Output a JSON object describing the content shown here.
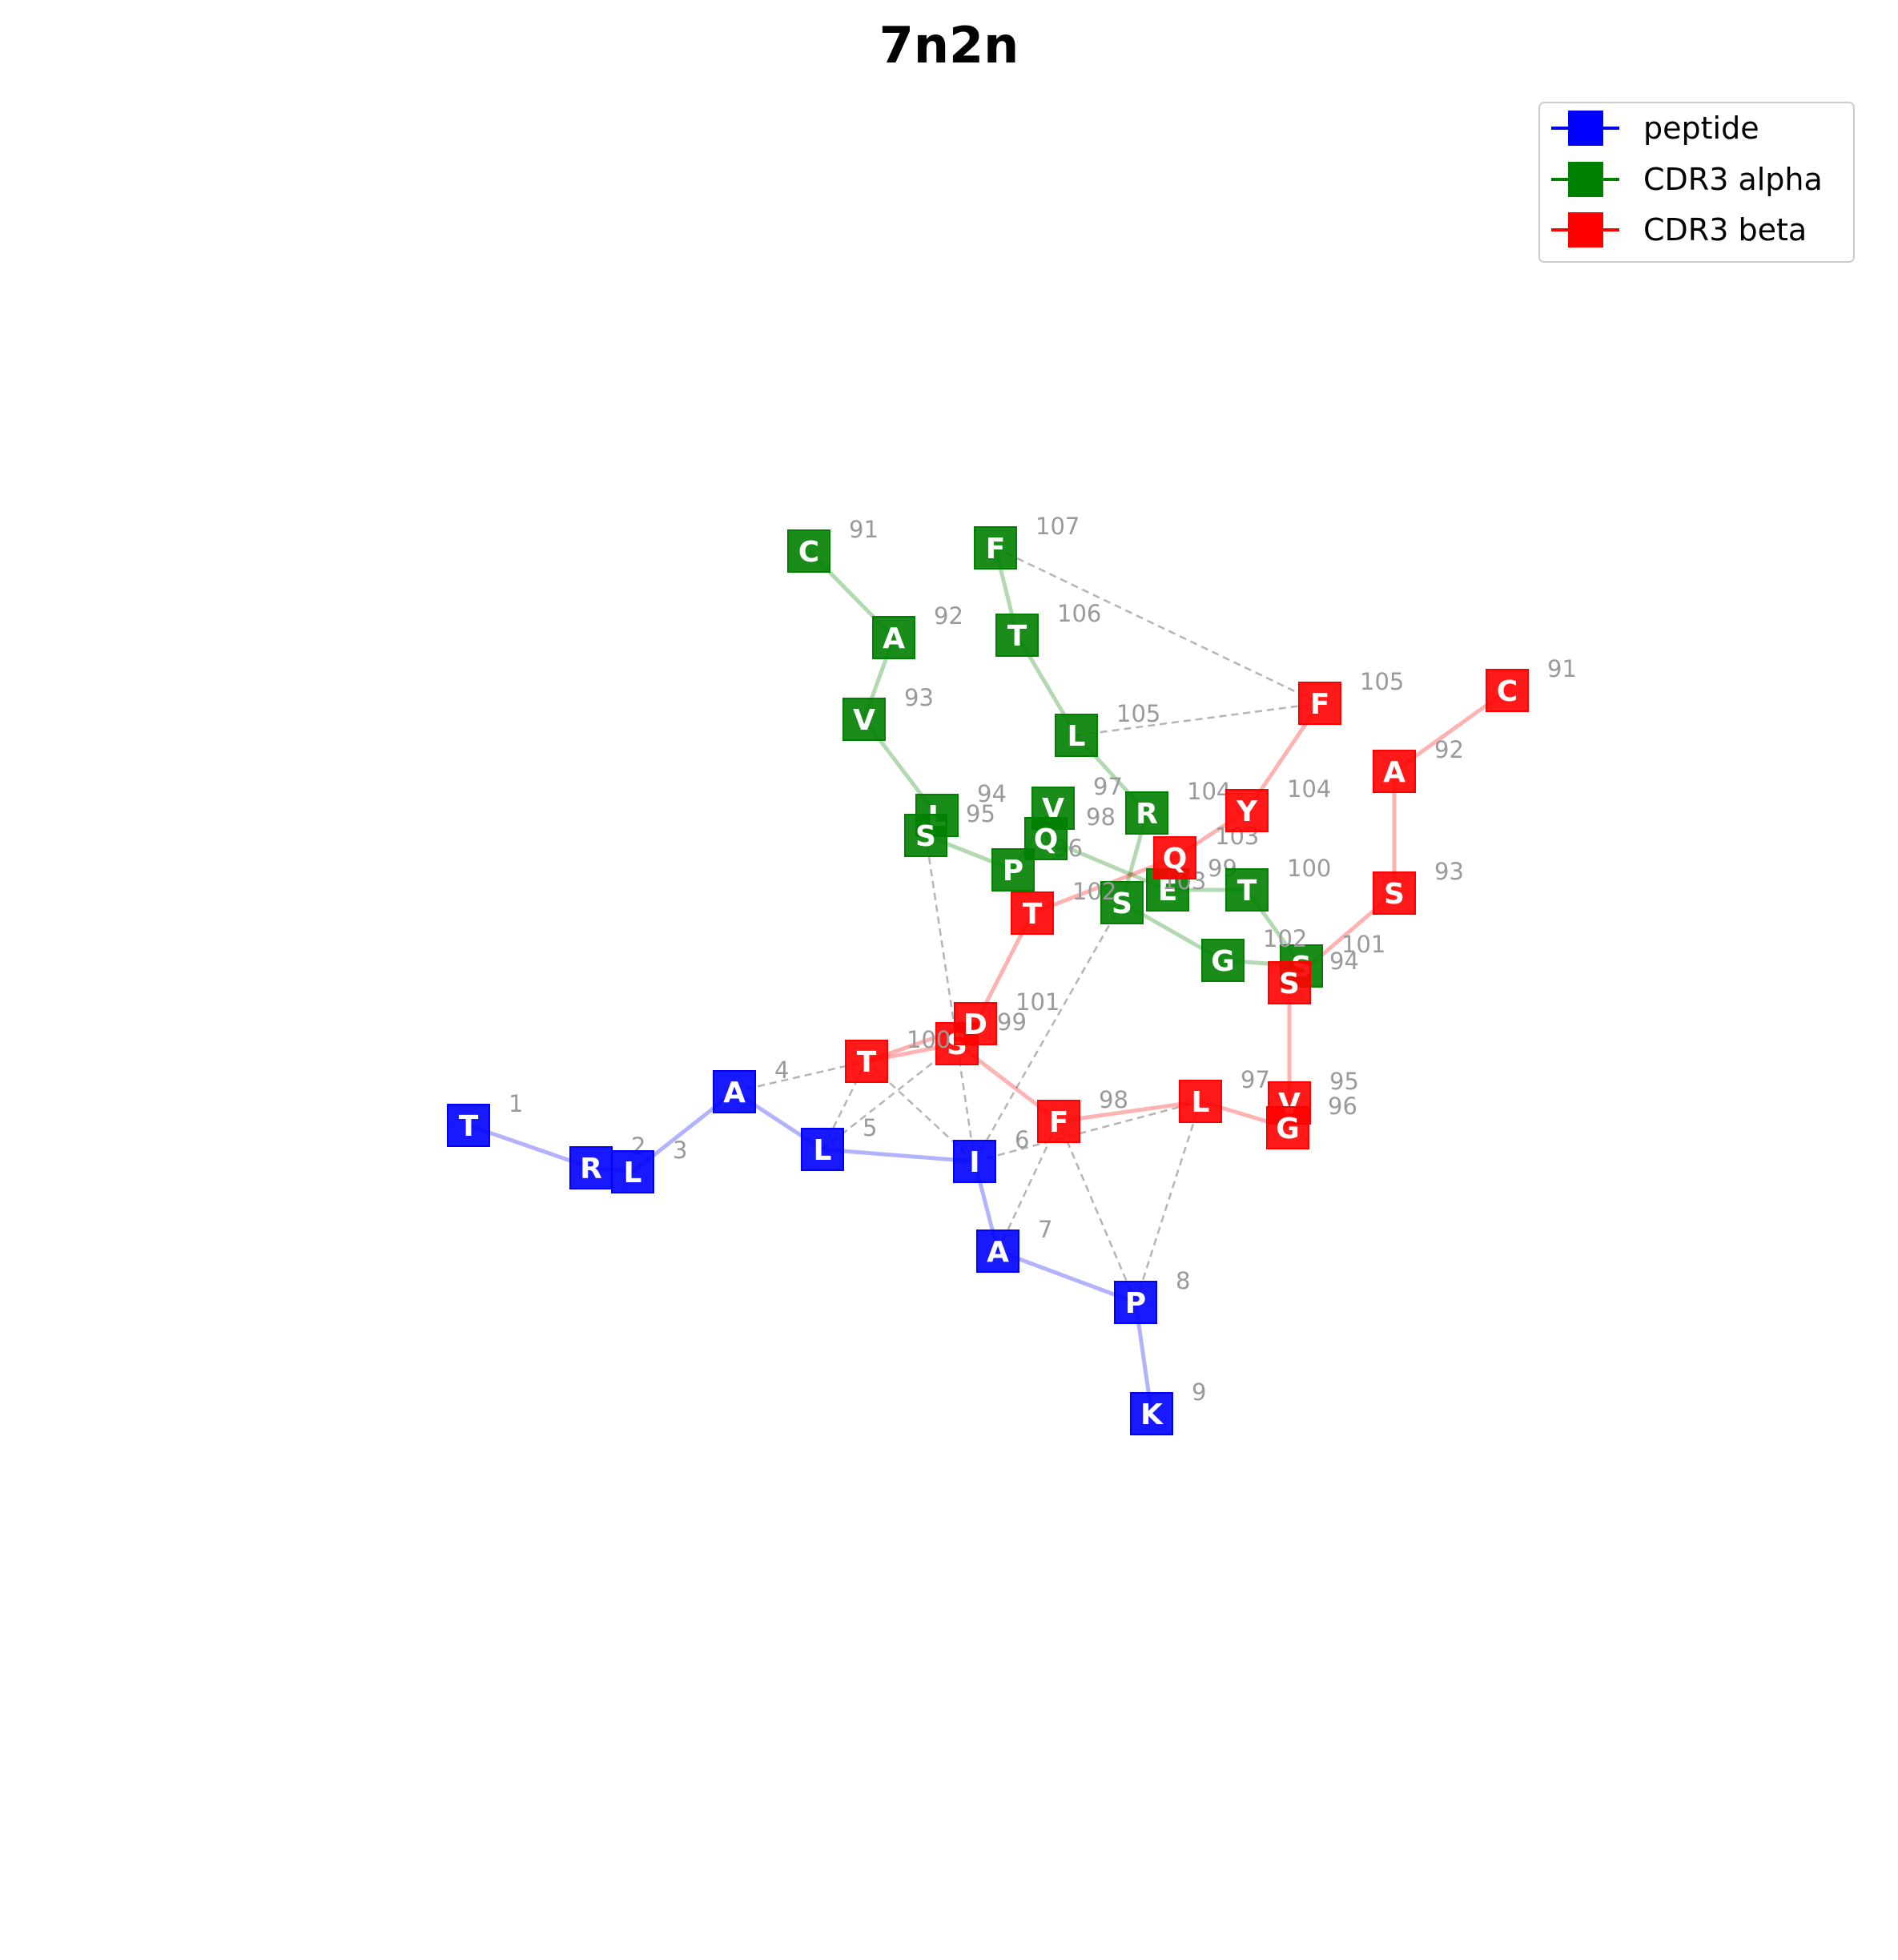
{
  "title": "7n2n",
  "legend": {
    "items": [
      {
        "label": "peptide",
        "color": "#0000ff"
      },
      {
        "label": "CDR3 alpha",
        "color": "#008000"
      },
      {
        "label": "CDR3 beta",
        "color": "#ff0000"
      }
    ]
  },
  "colors": {
    "peptide": "#0000ff",
    "alpha": "#008000",
    "beta": "#ff0000",
    "contact": "#b5b5b5"
  },
  "chains": [
    {
      "id": "peptide",
      "residues": [
        {
          "aa": "T",
          "num": "1"
        },
        {
          "aa": "R",
          "num": "2"
        },
        {
          "aa": "L",
          "num": "3"
        },
        {
          "aa": "A",
          "num": "4"
        },
        {
          "aa": "L",
          "num": "5"
        },
        {
          "aa": "I",
          "num": "6"
        },
        {
          "aa": "A",
          "num": "7"
        },
        {
          "aa": "P",
          "num": "8"
        },
        {
          "aa": "K",
          "num": "9"
        }
      ]
    },
    {
      "id": "alpha",
      "residues": [
        {
          "aa": "C",
          "num": "91"
        },
        {
          "aa": "A",
          "num": "92"
        },
        {
          "aa": "V",
          "num": "93"
        },
        {
          "aa": "L",
          "num": "94"
        },
        {
          "aa": "S",
          "num": "95"
        },
        {
          "aa": "P",
          "num": "96"
        },
        {
          "aa": "V",
          "num": "97"
        },
        {
          "aa": "Q",
          "num": "98"
        },
        {
          "aa": "E",
          "num": "99"
        },
        {
          "aa": "T",
          "num": "100"
        },
        {
          "aa": "S",
          "num": "101"
        },
        {
          "aa": "G",
          "num": "102"
        },
        {
          "aa": "S",
          "num": "103"
        },
        {
          "aa": "R",
          "num": "104"
        },
        {
          "aa": "L",
          "num": "105"
        },
        {
          "aa": "T",
          "num": "106"
        },
        {
          "aa": "F",
          "num": "107"
        }
      ]
    },
    {
      "id": "beta",
      "residues": [
        {
          "aa": "C",
          "num": "91"
        },
        {
          "aa": "A",
          "num": "92"
        },
        {
          "aa": "S",
          "num": "93"
        },
        {
          "aa": "S",
          "num": "94"
        },
        {
          "aa": "V",
          "num": "95"
        },
        {
          "aa": "G",
          "num": "96"
        },
        {
          "aa": "L",
          "num": "97"
        },
        {
          "aa": "F",
          "num": "98"
        },
        {
          "aa": "S",
          "num": "99"
        },
        {
          "aa": "T",
          "num": "100"
        },
        {
          "aa": "D",
          "num": "101"
        },
        {
          "aa": "T",
          "num": "102"
        },
        {
          "aa": "Q",
          "num": "103"
        },
        {
          "aa": "Y",
          "num": "104"
        },
        {
          "aa": "F",
          "num": "105"
        }
      ]
    }
  ],
  "contacts": [
    [
      "peptide:4",
      "beta:100"
    ],
    [
      "peptide:5",
      "beta:100"
    ],
    [
      "peptide:5",
      "beta:99"
    ],
    [
      "peptide:6",
      "beta:100"
    ],
    [
      "peptide:6",
      "alpha:95"
    ],
    [
      "peptide:6",
      "alpha:103"
    ],
    [
      "peptide:6",
      "beta:97"
    ],
    [
      "peptide:7",
      "beta:98"
    ],
    [
      "peptide:8",
      "beta:98"
    ],
    [
      "peptide:8",
      "beta:97"
    ],
    [
      "alpha:107",
      "beta:105"
    ],
    [
      "alpha:105",
      "beta:105"
    ]
  ]
}
